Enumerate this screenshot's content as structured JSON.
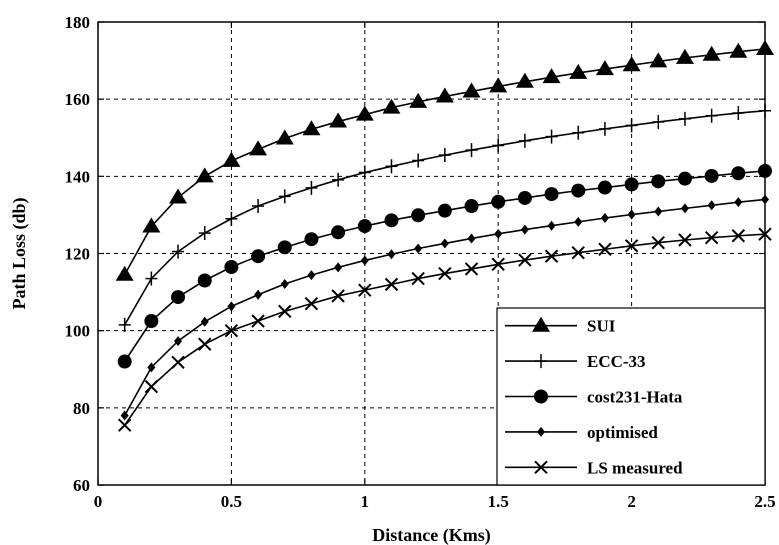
{
  "chart_data": {
    "type": "line",
    "title": "",
    "xlabel": "Distance (Kms)",
    "ylabel": "Path Loss (db)",
    "xlim": [
      0,
      2.5
    ],
    "ylim": [
      60,
      180
    ],
    "xticks": [
      0,
      0.5,
      1,
      1.5,
      2,
      2.5
    ],
    "xtick_labels": [
      "0",
      "0.5",
      "1",
      "1.5",
      "2",
      "2.5"
    ],
    "yticks": [
      60,
      80,
      100,
      120,
      140,
      160,
      180
    ],
    "ytick_labels": [
      "60",
      "80",
      "100",
      "120",
      "140",
      "160",
      "180"
    ],
    "grid": true,
    "legend_position": "bottom-right",
    "x": [
      0.1,
      0.2,
      0.3,
      0.4,
      0.5,
      0.6,
      0.7,
      0.8,
      0.9,
      1.0,
      1.1,
      1.2,
      1.3,
      1.4,
      1.5,
      1.6,
      1.7,
      1.8,
      1.9,
      2.0,
      2.1,
      2.2,
      2.3,
      2.4,
      2.5
    ],
    "series": [
      {
        "name": "SUI",
        "marker": "triangle",
        "values": [
          114.5,
          127,
          134.5,
          140,
          144,
          147,
          149.8,
          152.2,
          154.2,
          156,
          157.8,
          159.3,
          160.7,
          162,
          163.3,
          164.5,
          165.7,
          166.8,
          167.8,
          168.8,
          169.8,
          170.7,
          171.5,
          172.3,
          173
        ]
      },
      {
        "name": "ECC-33",
        "marker": "plus",
        "values": [
          101.5,
          113.5,
          120.5,
          125.3,
          129,
          132.3,
          134.8,
          137,
          139.1,
          141,
          142.6,
          144.1,
          145.5,
          146.8,
          148,
          149.2,
          150.3,
          151.3,
          152.3,
          153.2,
          154.1,
          154.9,
          155.7,
          156.4,
          157
        ]
      },
      {
        "name": "cost231-Hata",
        "marker": "circle",
        "values": [
          92,
          102.5,
          108.7,
          113,
          116.5,
          119.3,
          121.6,
          123.7,
          125.5,
          127.1,
          128.6,
          129.9,
          131.1,
          132.3,
          133.4,
          134.4,
          135.4,
          136.3,
          137.1,
          137.9,
          138.7,
          139.4,
          140.1,
          140.8,
          141.4
        ]
      },
      {
        "name": "optimised",
        "marker": "diamond",
        "values": [
          78,
          90.5,
          97.3,
          102.3,
          106.3,
          109.3,
          112.1,
          114.4,
          116.4,
          118.2,
          119.8,
          121.3,
          122.6,
          123.9,
          125.1,
          126.2,
          127.2,
          128.2,
          129.2,
          130.1,
          130.9,
          131.7,
          132.5,
          133.3,
          134
        ]
      },
      {
        "name": "LS measured",
        "marker": "x",
        "values": [
          75.5,
          85.5,
          91.8,
          96.5,
          100,
          102.5,
          105,
          107,
          109,
          110.5,
          112,
          113.5,
          114.8,
          116,
          117.2,
          118.3,
          119.3,
          120.2,
          121.1,
          122,
          122.8,
          123.5,
          124.1,
          124.6,
          125
        ]
      }
    ]
  }
}
